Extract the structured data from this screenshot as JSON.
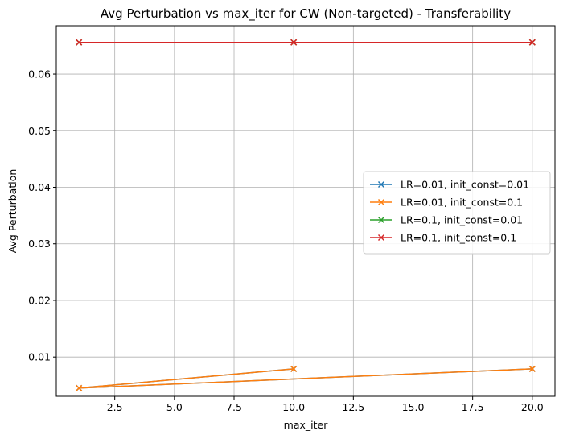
{
  "chart_data": {
    "type": "line",
    "title": "Avg Perturbation vs max_iter for CW (Non-targeted) - Transferability",
    "xlabel": "max_iter",
    "ylabel": "Avg Perturbation",
    "xlim": [
      0.05,
      20.95
    ],
    "ylim": [
      0.00305,
      0.06855
    ],
    "xticks": [
      2.5,
      5.0,
      7.5,
      10.0,
      12.5,
      15.0,
      17.5,
      20.0
    ],
    "xtick_labels": [
      "2.5",
      "5.0",
      "7.5",
      "10.0",
      "12.5",
      "15.0",
      "17.5",
      "20.0"
    ],
    "yticks": [
      0.01,
      0.02,
      0.03,
      0.04,
      0.05,
      0.06
    ],
    "ytick_labels": [
      "0.01",
      "0.02",
      "0.03",
      "0.04",
      "0.05",
      "0.06"
    ],
    "grid": true,
    "legend_position": "center-right",
    "marker": "x",
    "series": [
      {
        "name": "LR=0.01, init_const=0.01",
        "color": "#1f77b4",
        "x": [
          1,
          10,
          1,
          20
        ],
        "y": [
          0.0045,
          0.0079,
          0.0045,
          0.0079
        ]
      },
      {
        "name": "LR=0.01, init_const=0.1",
        "color": "#ff7f0e",
        "x": [
          1,
          10,
          1,
          20
        ],
        "y": [
          0.0045,
          0.0079,
          0.0045,
          0.0079
        ]
      },
      {
        "name": "LR=0.1, init_const=0.01",
        "color": "#2ca02c",
        "x": [
          1,
          10,
          1,
          20
        ],
        "y": [
          0.0656,
          0.0656,
          0.0656,
          0.0656
        ]
      },
      {
        "name": "LR=0.1, init_const=0.1",
        "color": "#d62728",
        "x": [
          1,
          10,
          1,
          20
        ],
        "y": [
          0.0656,
          0.0656,
          0.0656,
          0.0656
        ]
      }
    ]
  }
}
